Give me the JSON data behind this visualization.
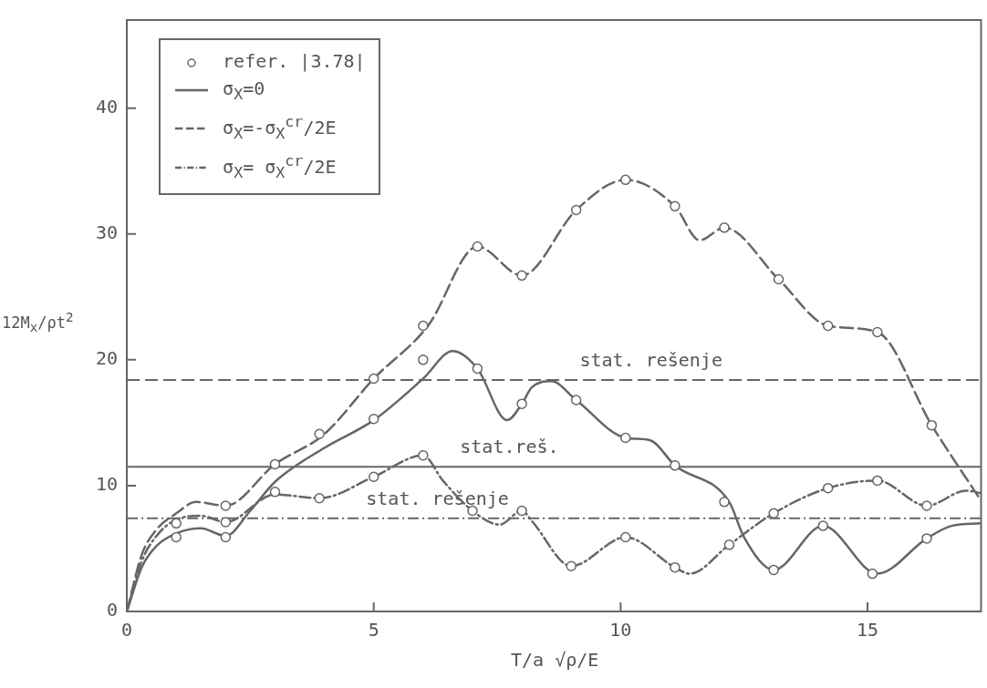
{
  "chart_data": {
    "type": "line",
    "xlabel": "T/a √ρ/E",
    "ylabel": "12M$_{x}$/ρt$^{2}$",
    "xlim": [
      0,
      17.3
    ],
    "ylim": [
      0,
      47
    ],
    "xticks": [
      0,
      5,
      10,
      15
    ],
    "yticks": [
      0,
      10,
      20,
      30,
      40
    ],
    "grid": false,
    "legend": "top left",
    "series": [
      {
        "name": "refer. |3.78|",
        "type": "scatter",
        "marker": "circle",
        "color": "#666666",
        "x": [
          1.0,
          1.0,
          2.0,
          2.0,
          2.0,
          3.0,
          3.0,
          3.9,
          3.9,
          5.0,
          5.0,
          5.0,
          6.0,
          6.0,
          6.0,
          7.1,
          7.1,
          7.0,
          8.0,
          8.0,
          8.0,
          9.1,
          9.1,
          9.0,
          10.1,
          10.1,
          10.1,
          11.1,
          11.1,
          11.1,
          12.1,
          12.1,
          12.2,
          13.2,
          13.1,
          13.1,
          14.2,
          14.1,
          14.2,
          15.2,
          15.2,
          15.1,
          16.3,
          16.2,
          16.2
        ],
        "values": [
          7.0,
          5.9,
          8.4,
          7.1,
          5.9,
          11.7,
          9.5,
          14.1,
          9.0,
          18.5,
          15.3,
          10.7,
          22.7,
          20.0,
          12.4,
          29.0,
          19.3,
          8.0,
          26.7,
          16.5,
          8.0,
          31.9,
          16.8,
          3.6,
          34.3,
          13.8,
          5.9,
          32.2,
          11.6,
          3.5,
          30.5,
          8.7,
          5.3,
          26.4,
          3.3,
          7.8,
          22.7,
          6.8,
          9.8,
          22.2,
          10.4,
          3.0,
          14.8,
          8.4,
          5.8
        ]
      },
      {
        "name": "σ$_{X}$=0",
        "line_style": "solid",
        "color": "#666666",
        "x": [
          0,
          0.3,
          0.6,
          1.0,
          1.5,
          2.0,
          2.5,
          3.0,
          4.0,
          5.0,
          6.0,
          6.6,
          7.1,
          7.7,
          8.0,
          8.2,
          8.6,
          9.1,
          10.1,
          10.6,
          11.1,
          12.2,
          12.5,
          13.1,
          14.1,
          15.2,
          16.2,
          16.7,
          17.3
        ],
        "values": [
          0,
          3.5,
          5.2,
          6.2,
          6.6,
          6.0,
          8.0,
          10.3,
          13.0,
          15.2,
          18.5,
          20.7,
          19.3,
          15.2,
          16.5,
          17.8,
          18.3,
          16.8,
          13.8,
          13.6,
          11.6,
          8.7,
          5.9,
          3.3,
          6.8,
          3.0,
          5.8,
          6.8,
          7.0
        ]
      },
      {
        "name": "σ$_{X}$=-σ$_{X}$$^{cr}$/2E",
        "line_style": "dashed",
        "color": "#666666",
        "x": [
          0,
          0.3,
          0.6,
          1.0,
          1.4,
          2.0,
          3.0,
          4.0,
          5.0,
          6.1,
          7.1,
          8.0,
          9.1,
          10.1,
          11.1,
          11.6,
          12.1,
          13.2,
          14.2,
          15.2,
          16.3,
          17.3
        ],
        "values": [
          0,
          4.5,
          6.5,
          7.8,
          8.7,
          8.4,
          11.7,
          14.1,
          18.5,
          22.7,
          29.0,
          26.7,
          31.9,
          34.3,
          32.2,
          29.5,
          30.5,
          26.4,
          22.7,
          22.2,
          14.8,
          8.8
        ]
      },
      {
        "name": "σ$_{X}$= σ$_{X}$$^{cr}$/2E",
        "line_style": "dotted",
        "color": "#666666",
        "x": [
          0,
          0.3,
          0.6,
          1.0,
          1.5,
          2.0,
          3.0,
          3.9,
          5.0,
          6.0,
          6.4,
          7.0,
          7.55,
          8.0,
          8.2,
          9.0,
          10.1,
          11.1,
          11.4,
          12.2,
          13.1,
          14.2,
          15.2,
          16.2,
          17.0,
          17.3
        ],
        "values": [
          0,
          4.0,
          6.0,
          7.3,
          7.6,
          7.1,
          9.3,
          9.0,
          10.7,
          12.4,
          10.4,
          8.0,
          6.9,
          8.0,
          7.2,
          3.6,
          5.9,
          3.5,
          3.0,
          5.3,
          7.8,
          9.8,
          10.4,
          8.4,
          9.6,
          9.4
        ]
      }
    ],
    "ref_lines": [
      {
        "axis": "y",
        "value": 18.4,
        "label": "stat. rešenje",
        "line_style": "dashed",
        "color": "#666666"
      },
      {
        "axis": "y",
        "value": 11.5,
        "label": "stat.reš.",
        "line_style": "solid",
        "color": "#666666"
      },
      {
        "axis": "y",
        "value": 7.4,
        "label": "stat. rešenje",
        "line_style": "dotted",
        "color": "#666666"
      }
    ]
  }
}
